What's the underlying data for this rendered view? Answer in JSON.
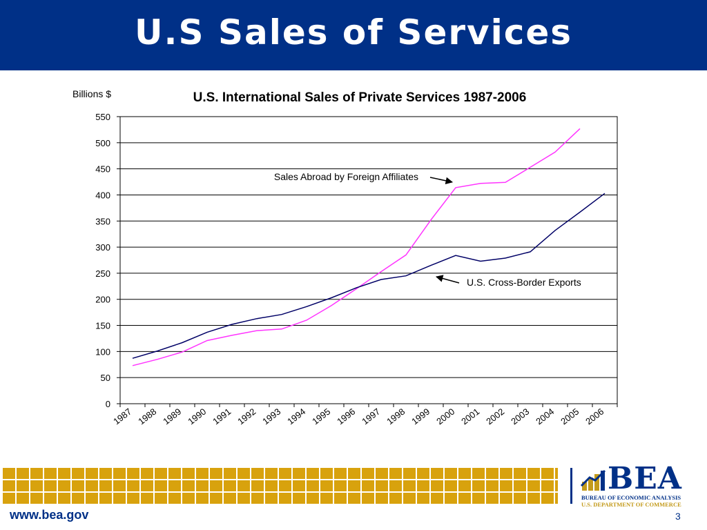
{
  "slide": {
    "title": "U.S Sales of Services",
    "footer_url": "www.bea.gov",
    "page_number": "3"
  },
  "logo": {
    "word": "BEA",
    "line1": "BUREAU OF ECONOMIC ANALYSIS",
    "line2": "U.S. DEPARTMENT OF COMMERCE"
  },
  "colors": {
    "header": "#003087",
    "footer_tiles": "#d8a20d",
    "series_affiliates": "#ff33ff",
    "series_exports": "#000066"
  },
  "chart_data": {
    "type": "line",
    "title": "U.S. International Sales of Private Services 1987-2006",
    "ylabel": "Billions $",
    "xlabel": "",
    "ylim": [
      0,
      550
    ],
    "yticks": [
      0,
      50,
      100,
      150,
      200,
      250,
      300,
      350,
      400,
      450,
      500,
      550
    ],
    "grid": true,
    "categories": [
      "1987",
      "1988",
      "1989",
      "1990",
      "1991",
      "1992",
      "1993",
      "1994",
      "1995",
      "1996",
      "1997",
      "1998",
      "1999",
      "2000",
      "2001",
      "2002",
      "2003",
      "2004",
      "2005",
      "2006"
    ],
    "series": [
      {
        "name": "Sales Abroad by Foreign Affiliates",
        "color": "#ff33ff",
        "values": [
          73,
          85,
          99,
          121,
          131,
          140,
          143,
          160,
          188,
          220,
          253,
          285,
          352,
          414,
          422,
          424,
          453,
          482,
          527,
          null
        ]
      },
      {
        "name": "U.S. Cross-Border Exports",
        "color": "#000066",
        "values": [
          87,
          101,
          117,
          137,
          152,
          163,
          171,
          186,
          203,
          222,
          238,
          245,
          265,
          284,
          273,
          279,
          291,
          332,
          367,
          403
        ]
      }
    ],
    "annotations": [
      {
        "text": "Sales Abroad by Foreign Affiliates",
        "series": 0,
        "points_to_index": 13
      },
      {
        "text": "U.S. Cross-Border Exports",
        "series": 1,
        "points_to_index": 12
      }
    ]
  }
}
